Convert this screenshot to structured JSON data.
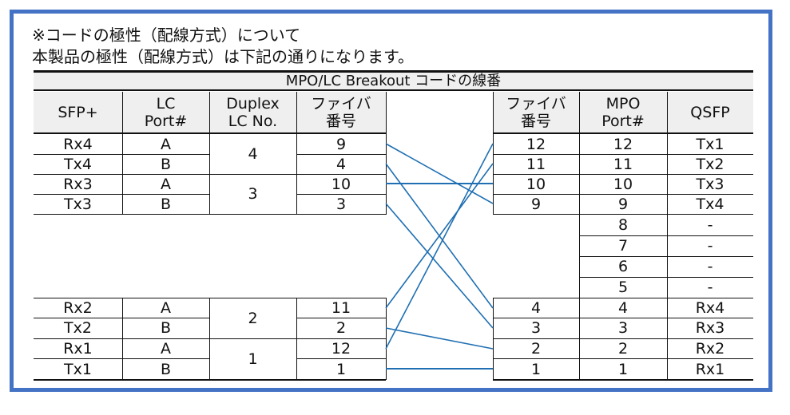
{
  "notes": {
    "line1": "※コードの極性（配線方式）について",
    "line2": "本製品の極性（配線方式）は下記の通りになります。"
  },
  "table_title": "MPO/LC Breakout コードの線番",
  "left_headers": {
    "sfp": "SFP+",
    "lc_port": "LC\nPort#",
    "duplex": "Duplex\nLC No.",
    "fiber": "ファイバ\n番号"
  },
  "right_headers": {
    "fiber": "ファイバ\n番号",
    "mpo": "MPO\nPort#",
    "qsfp": "QSFP"
  },
  "left_rows": [
    {
      "sfp": "Rx4",
      "port": "A",
      "fiber": "9"
    },
    {
      "sfp": "Tx4",
      "port": "B",
      "fiber": "4"
    },
    {
      "sfp": "Rx3",
      "port": "A",
      "fiber": "10"
    },
    {
      "sfp": "Tx3",
      "port": "B",
      "fiber": "3"
    },
    {
      "sfp": "Rx2",
      "port": "A",
      "fiber": "11"
    },
    {
      "sfp": "Tx2",
      "port": "B",
      "fiber": "2"
    },
    {
      "sfp": "Rx1",
      "port": "A",
      "fiber": "12"
    },
    {
      "sfp": "Tx1",
      "port": "B",
      "fiber": "1"
    }
  ],
  "duplex_numbers": [
    "4",
    "3",
    "2",
    "1"
  ],
  "right_rows": [
    {
      "fiber": "12",
      "mpo": "12",
      "qsfp": "Tx1"
    },
    {
      "fiber": "11",
      "mpo": "11",
      "qsfp": "Tx2"
    },
    {
      "fiber": "10",
      "mpo": "10",
      "qsfp": "Tx3"
    },
    {
      "fiber": "9",
      "mpo": "9",
      "qsfp": "Tx4"
    },
    {
      "fiber": "",
      "mpo": "8",
      "qsfp": "-"
    },
    {
      "fiber": "",
      "mpo": "7",
      "qsfp": "-"
    },
    {
      "fiber": "",
      "mpo": "6",
      "qsfp": "-"
    },
    {
      "fiber": "",
      "mpo": "5",
      "qsfp": "-"
    },
    {
      "fiber": "4",
      "mpo": "4",
      "qsfp": "Rx4"
    },
    {
      "fiber": "3",
      "mpo": "3",
      "qsfp": "Rx3"
    },
    {
      "fiber": "2",
      "mpo": "2",
      "qsfp": "Rx2"
    },
    {
      "fiber": "1",
      "mpo": "1",
      "qsfp": "Rx1"
    }
  ],
  "connections": [
    {
      "from_fiber": "9",
      "to_fiber": "9"
    },
    {
      "from_fiber": "4",
      "to_fiber": "4"
    },
    {
      "from_fiber": "10",
      "to_fiber": "10"
    },
    {
      "from_fiber": "3",
      "to_fiber": "3"
    },
    {
      "from_fiber": "11",
      "to_fiber": "11"
    },
    {
      "from_fiber": "2",
      "to_fiber": "2"
    },
    {
      "from_fiber": "12",
      "to_fiber": "12"
    },
    {
      "from_fiber": "1",
      "to_fiber": "1"
    }
  ],
  "colors": {
    "frame": "#4472c4",
    "wire": "#1f6fb2",
    "header_bg": "#efefef"
  }
}
